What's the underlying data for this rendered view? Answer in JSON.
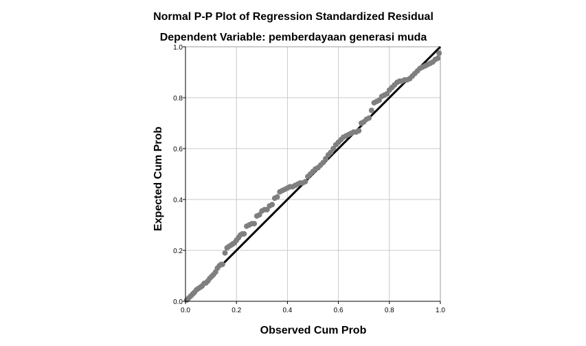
{
  "chart_data": {
    "type": "scatter",
    "title": "Normal P-P Plot of Regression Standardized Residual",
    "subtitle": "Dependent Variable: pemberdayaan generasi muda",
    "xlabel": "Observed Cum Prob",
    "ylabel": "Expected Cum Prob",
    "xlim": [
      0,
      1
    ],
    "ylim": [
      0,
      1
    ],
    "x_ticks": [
      "0.0",
      "0.2",
      "0.4",
      "0.6",
      "0.8",
      "1.0"
    ],
    "y_ticks": [
      "0.0",
      "0.2",
      "0.4",
      "0.6",
      "0.8",
      "1.0"
    ],
    "grid": true,
    "reference_line": [
      [
        0,
        0
      ],
      [
        1,
        1
      ]
    ],
    "colors": {
      "points": "#7f7f7f",
      "line": "#000000",
      "grid": "#c8c8c8"
    },
    "series": [
      {
        "points": [
          [
            0.005,
            0.005
          ],
          [
            0.012,
            0.012
          ],
          [
            0.02,
            0.02
          ],
          [
            0.028,
            0.028
          ],
          [
            0.035,
            0.035
          ],
          [
            0.043,
            0.045
          ],
          [
            0.05,
            0.05
          ],
          [
            0.058,
            0.055
          ],
          [
            0.065,
            0.06
          ],
          [
            0.073,
            0.07
          ],
          [
            0.08,
            0.072
          ],
          [
            0.088,
            0.08
          ],
          [
            0.095,
            0.09
          ],
          [
            0.103,
            0.098
          ],
          [
            0.11,
            0.105
          ],
          [
            0.118,
            0.115
          ],
          [
            0.125,
            0.13
          ],
          [
            0.133,
            0.14
          ],
          [
            0.14,
            0.145
          ],
          [
            0.145,
            0.145
          ],
          [
            0.155,
            0.19
          ],
          [
            0.163,
            0.21
          ],
          [
            0.17,
            0.215
          ],
          [
            0.178,
            0.22
          ],
          [
            0.185,
            0.225
          ],
          [
            0.193,
            0.23
          ],
          [
            0.2,
            0.24
          ],
          [
            0.208,
            0.25
          ],
          [
            0.215,
            0.26
          ],
          [
            0.223,
            0.265
          ],
          [
            0.23,
            0.265
          ],
          [
            0.24,
            0.295
          ],
          [
            0.25,
            0.3
          ],
          [
            0.26,
            0.305
          ],
          [
            0.27,
            0.305
          ],
          [
            0.28,
            0.335
          ],
          [
            0.29,
            0.34
          ],
          [
            0.3,
            0.355
          ],
          [
            0.31,
            0.36
          ],
          [
            0.32,
            0.36
          ],
          [
            0.33,
            0.375
          ],
          [
            0.34,
            0.38
          ],
          [
            0.35,
            0.405
          ],
          [
            0.36,
            0.41
          ],
          [
            0.37,
            0.43
          ],
          [
            0.38,
            0.435
          ],
          [
            0.39,
            0.44
          ],
          [
            0.4,
            0.445
          ],
          [
            0.41,
            0.45
          ],
          [
            0.42,
            0.45
          ],
          [
            0.43,
            0.455
          ],
          [
            0.44,
            0.46
          ],
          [
            0.45,
            0.465
          ],
          [
            0.46,
            0.465
          ],
          [
            0.47,
            0.47
          ],
          [
            0.48,
            0.49
          ],
          [
            0.49,
            0.5
          ],
          [
            0.5,
            0.51
          ],
          [
            0.51,
            0.52
          ],
          [
            0.52,
            0.525
          ],
          [
            0.53,
            0.535
          ],
          [
            0.54,
            0.545
          ],
          [
            0.55,
            0.56
          ],
          [
            0.56,
            0.575
          ],
          [
            0.57,
            0.585
          ],
          [
            0.58,
            0.6
          ],
          [
            0.59,
            0.615
          ],
          [
            0.6,
            0.625
          ],
          [
            0.61,
            0.635
          ],
          [
            0.62,
            0.645
          ],
          [
            0.63,
            0.65
          ],
          [
            0.64,
            0.655
          ],
          [
            0.65,
            0.66
          ],
          [
            0.66,
            0.665
          ],
          [
            0.67,
            0.665
          ],
          [
            0.68,
            0.67
          ],
          [
            0.69,
            0.7
          ],
          [
            0.7,
            0.705
          ],
          [
            0.71,
            0.715
          ],
          [
            0.72,
            0.72
          ],
          [
            0.73,
            0.75
          ],
          [
            0.74,
            0.78
          ],
          [
            0.75,
            0.785
          ],
          [
            0.76,
            0.79
          ],
          [
            0.77,
            0.805
          ],
          [
            0.78,
            0.81
          ],
          [
            0.79,
            0.815
          ],
          [
            0.8,
            0.83
          ],
          [
            0.81,
            0.84
          ],
          [
            0.82,
            0.85
          ],
          [
            0.83,
            0.86
          ],
          [
            0.84,
            0.865
          ],
          [
            0.85,
            0.865
          ],
          [
            0.86,
            0.87
          ],
          [
            0.87,
            0.87
          ],
          [
            0.88,
            0.875
          ],
          [
            0.89,
            0.885
          ],
          [
            0.9,
            0.895
          ],
          [
            0.91,
            0.905
          ],
          [
            0.92,
            0.915
          ],
          [
            0.93,
            0.92
          ],
          [
            0.94,
            0.925
          ],
          [
            0.95,
            0.93
          ],
          [
            0.96,
            0.935
          ],
          [
            0.97,
            0.94
          ],
          [
            0.98,
            0.95
          ],
          [
            0.99,
            0.955
          ],
          [
            0.995,
            0.975
          ]
        ]
      }
    ]
  }
}
